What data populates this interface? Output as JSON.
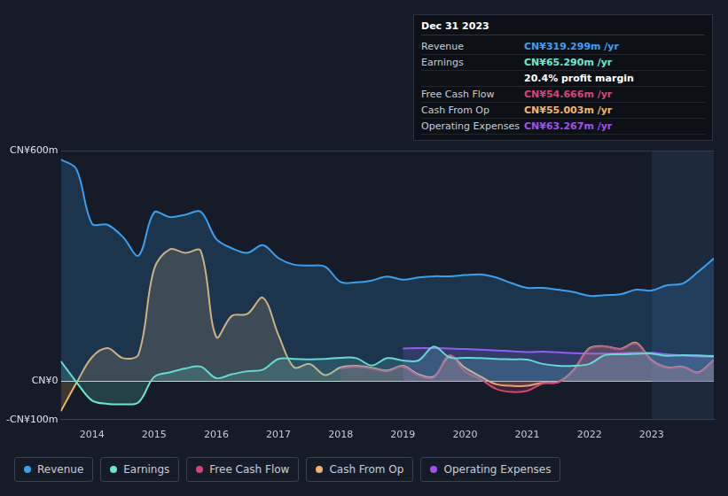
{
  "chart_data": {
    "type": "line",
    "x": [
      2013.5,
      2013.75,
      2014,
      2014.25,
      2014.5,
      2014.75,
      2015,
      2015.25,
      2015.5,
      2015.75,
      2016,
      2016.25,
      2016.5,
      2016.75,
      2017,
      2017.25,
      2017.5,
      2017.75,
      2018,
      2018.25,
      2018.5,
      2018.75,
      2019,
      2019.25,
      2019.5,
      2019.75,
      2020,
      2020.25,
      2020.5,
      2020.75,
      2021,
      2021.25,
      2021.5,
      2021.75,
      2022,
      2022.25,
      2022.5,
      2022.75,
      2023,
      2023.25,
      2023.5,
      2023.75,
      2024
    ],
    "series": [
      {
        "name": "Revenue",
        "color": "#3a9ff0",
        "values": [
          577,
          552,
          410,
          407,
          375,
          327,
          439,
          427,
          433,
          441,
          370,
          346,
          334,
          354,
          320,
          303,
          301,
          298,
          258,
          257,
          262,
          272,
          264,
          270,
          273,
          273,
          276,
          278,
          270,
          255,
          243,
          243,
          238,
          232,
          222,
          224,
          226,
          238,
          236,
          250,
          254,
          285,
          319.299
        ]
      },
      {
        "name": "Earnings",
        "color": "#6ee7cf",
        "values": [
          52,
          -2,
          -50,
          -59,
          -60,
          -55,
          11,
          23,
          33,
          38,
          8,
          18,
          26,
          30,
          58,
          58,
          57,
          58,
          61,
          60,
          41,
          60,
          54,
          54,
          90,
          62,
          61,
          60,
          58,
          57,
          56,
          45,
          40,
          40,
          45,
          68,
          70,
          71,
          72,
          66,
          68,
          67,
          65.29
        ]
      },
      {
        "name": "Free Cash Flow",
        "color": "#d6457a",
        "values": [
          null,
          null,
          null,
          null,
          null,
          null,
          null,
          null,
          null,
          null,
          null,
          null,
          null,
          null,
          null,
          null,
          null,
          null,
          34,
          38,
          33,
          26,
          38,
          15,
          10,
          68,
          25,
          5,
          -20,
          -28,
          -25,
          -6,
          -3,
          28,
          84,
          90,
          83,
          98,
          53,
          35,
          37,
          22,
          54.666
        ]
      },
      {
        "name": "Cash From Op",
        "color": "#f0b56b",
        "values": [
          -78,
          -5,
          62,
          86,
          60,
          70,
          292,
          343,
          334,
          339,
          115,
          170,
          175,
          217,
          120,
          36,
          45,
          16,
          36,
          40,
          35,
          28,
          40,
          18,
          12,
          65,
          35,
          12,
          -8,
          -12,
          -12,
          -4,
          -2,
          30,
          86,
          91,
          84,
          100,
          55,
          36,
          38,
          23,
          55.003
        ]
      },
      {
        "name": "Operating Expenses",
        "color": "#a54ff0",
        "values": [
          null,
          null,
          null,
          null,
          null,
          null,
          null,
          null,
          null,
          null,
          null,
          null,
          null,
          null,
          null,
          null,
          null,
          null,
          null,
          null,
          null,
          null,
          85,
          86,
          86,
          85,
          84,
          82,
          80,
          78,
          76,
          77,
          75,
          73,
          72,
          72,
          73,
          74,
          74,
          70,
          67,
          64,
          63.267
        ]
      }
    ],
    "xlim": [
      2013.5,
      2024
    ],
    "xticks": [
      2014,
      2015,
      2016,
      2017,
      2018,
      2019,
      2020,
      2021,
      2022,
      2023
    ],
    "ylim": [
      -100,
      600
    ],
    "yticks": [
      {
        "value": -100,
        "label": "-CN¥100m"
      },
      {
        "value": 0,
        "label": "CN¥0"
      },
      {
        "value": 600,
        "label": "CN¥600m"
      }
    ],
    "grid": true,
    "tooltip": {
      "title": "Dec 31 2023",
      "rows": [
        {
          "label": "Revenue",
          "value": "CN¥319.299m /yr",
          "color": "#3a9ff0"
        },
        {
          "label": "Earnings",
          "value": "CN¥65.290m /yr",
          "color": "#6ee7cf"
        },
        {
          "value": "20.4% profit margin",
          "color": "#ffffff"
        },
        {
          "label": "Free Cash Flow",
          "value": "CN¥54.666m /yr",
          "color": "#d6457a"
        },
        {
          "label": "Cash From Op",
          "value": "CN¥55.003m /yr",
          "color": "#f0b56b"
        },
        {
          "label": "Operating Expenses",
          "value": "CN¥63.267m /yr",
          "color": "#a54ff0"
        }
      ]
    }
  }
}
